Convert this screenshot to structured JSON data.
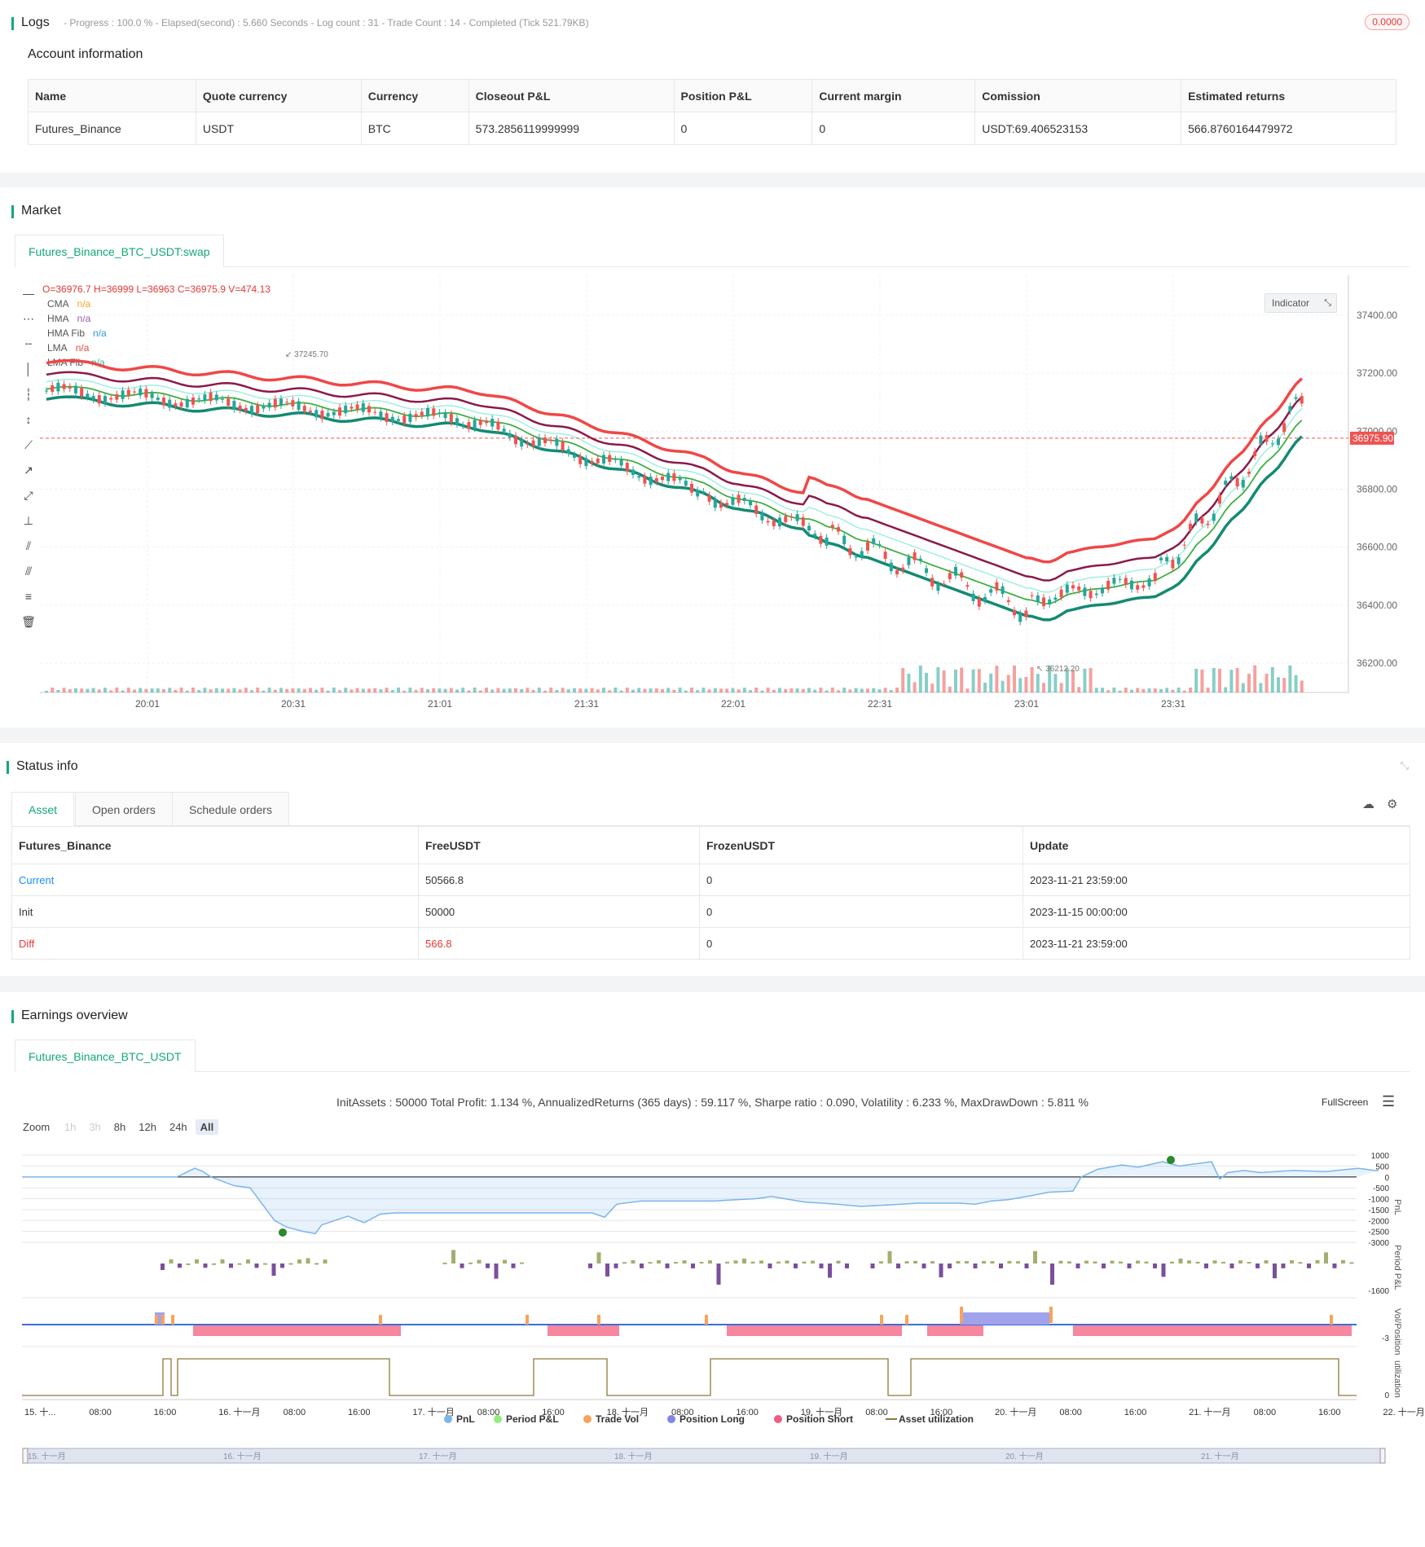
{
  "logs": {
    "title": "Logs",
    "status_line": "- Progress : 100.0 % - Elapsed(second) : 5.660  Seconds - Log count : 31 - Trade Count : 14 - Completed (Tick 521.79KB)",
    "badge": "0.0000"
  },
  "account": {
    "title": "Account information",
    "columns": [
      "Name",
      "Quote currency",
      "Currency",
      "Closeout P&L",
      "Position P&L",
      "Current margin",
      "Comission",
      "Estimated returns"
    ],
    "row": [
      "Futures_Binance",
      "USDT",
      "BTC",
      "573.2856119999999",
      "0",
      "0",
      "USDT:69.406523153",
      "566.8760164479972"
    ]
  },
  "market": {
    "title": "Market",
    "tab": "Futures_Binance_BTC_USDT:swap",
    "ohlc": "O=36976.7 H=36999 L=36963 C=36975.9 V=474.13",
    "indicator_button": "Indicator",
    "legend": [
      {
        "name": "CMA",
        "value": "n/a",
        "color": "#f5a623"
      },
      {
        "name": "HMA",
        "value": "n/a",
        "color": "#9b59b6"
      },
      {
        "name": "HMA Fib",
        "value": "n/a",
        "color": "#3498db"
      },
      {
        "name": "LMA",
        "value": "n/a",
        "color": "#e74c3c"
      },
      {
        "name": "LMA Fib",
        "value": "n/a",
        "color": "#1abc9c"
      }
    ],
    "price_ticks": [
      "37400.00",
      "37200.00",
      "37000.00",
      "36800.00",
      "36600.00",
      "36400.00",
      "36200.00"
    ],
    "time_ticks": [
      "20:01",
      "20:31",
      "21:01",
      "21:31",
      "22:01",
      "22:31",
      "23:01",
      "23:31"
    ],
    "last_price": "36975.90",
    "high_label": "37245.70",
    "low_label": "36212.20"
  },
  "status": {
    "title": "Status info",
    "tabs": [
      "Asset",
      "Open orders",
      "Schedule orders"
    ],
    "columns": [
      "Futures_Binance",
      "FreeUSDT",
      "FrozenUSDT",
      "Update"
    ],
    "rows": [
      [
        "Current",
        "50566.8",
        "0",
        "2023-11-21 23:59:00"
      ],
      [
        "Init",
        "50000",
        "0",
        "2023-11-15 00:00:00"
      ],
      [
        "Diff",
        "566.8",
        "0",
        "2023-11-21 23:59:00"
      ]
    ]
  },
  "earnings": {
    "title": "Earnings overview",
    "tab": "Futures_Binance_BTC_USDT",
    "summary": "InitAssets : 50000 Total Profit: 1.134 %, AnnualizedReturns (365 days) : 59.117 %, Sharpe ratio : 0.090, Volatility : 6.233 %, MaxDrawDown : 5.811 %",
    "fullscreen": "FullScreen",
    "zoom_label": "Zoom",
    "zoom_buttons": [
      "1h",
      "3h",
      "8h",
      "12h",
      "24h",
      "All"
    ],
    "pnl_ticks": [
      "1000",
      "500",
      "0",
      "-500",
      "-1000",
      "-1500",
      "-2000",
      "-2500",
      "-3000"
    ],
    "pnl_axis": "PnL",
    "period_axis": "Period P&L",
    "period_tick": "-1600",
    "vol_axis": "Vol/Position",
    "vol_tick": "-3",
    "util_axis": "utilization",
    "util_tick": "0",
    "x_ticks": [
      "15. 十...",
      "08:00",
      "16:00",
      "16. 十一月",
      "08:00",
      "16:00",
      "17. 十一月",
      "08:00",
      "16:00",
      "18. 十一月",
      "08:00",
      "16:00",
      "19. 十一月",
      "08:00",
      "16:00",
      "20. 十一月",
      "08:00",
      "16:00",
      "21. 十一月",
      "08:00",
      "16:00",
      "22. 十一月"
    ],
    "navigator_ticks": [
      "15. 十一月",
      "16. 十一月",
      "17. 十一月",
      "18. 十一月",
      "19. 十一月",
      "20. 十一月",
      "21. 十一月"
    ],
    "legend": [
      {
        "name": "PnL",
        "color": "#7cb5ec"
      },
      {
        "name": "Period P&L",
        "color": "#90ed7d"
      },
      {
        "name": "Trade Vol",
        "color": "#f7a35c"
      },
      {
        "name": "Position Long",
        "color": "#8085e9"
      },
      {
        "name": "Position Short",
        "color": "#f15c80"
      },
      {
        "name": "Asset utilization",
        "color": "#8d7b3a"
      }
    ]
  }
}
